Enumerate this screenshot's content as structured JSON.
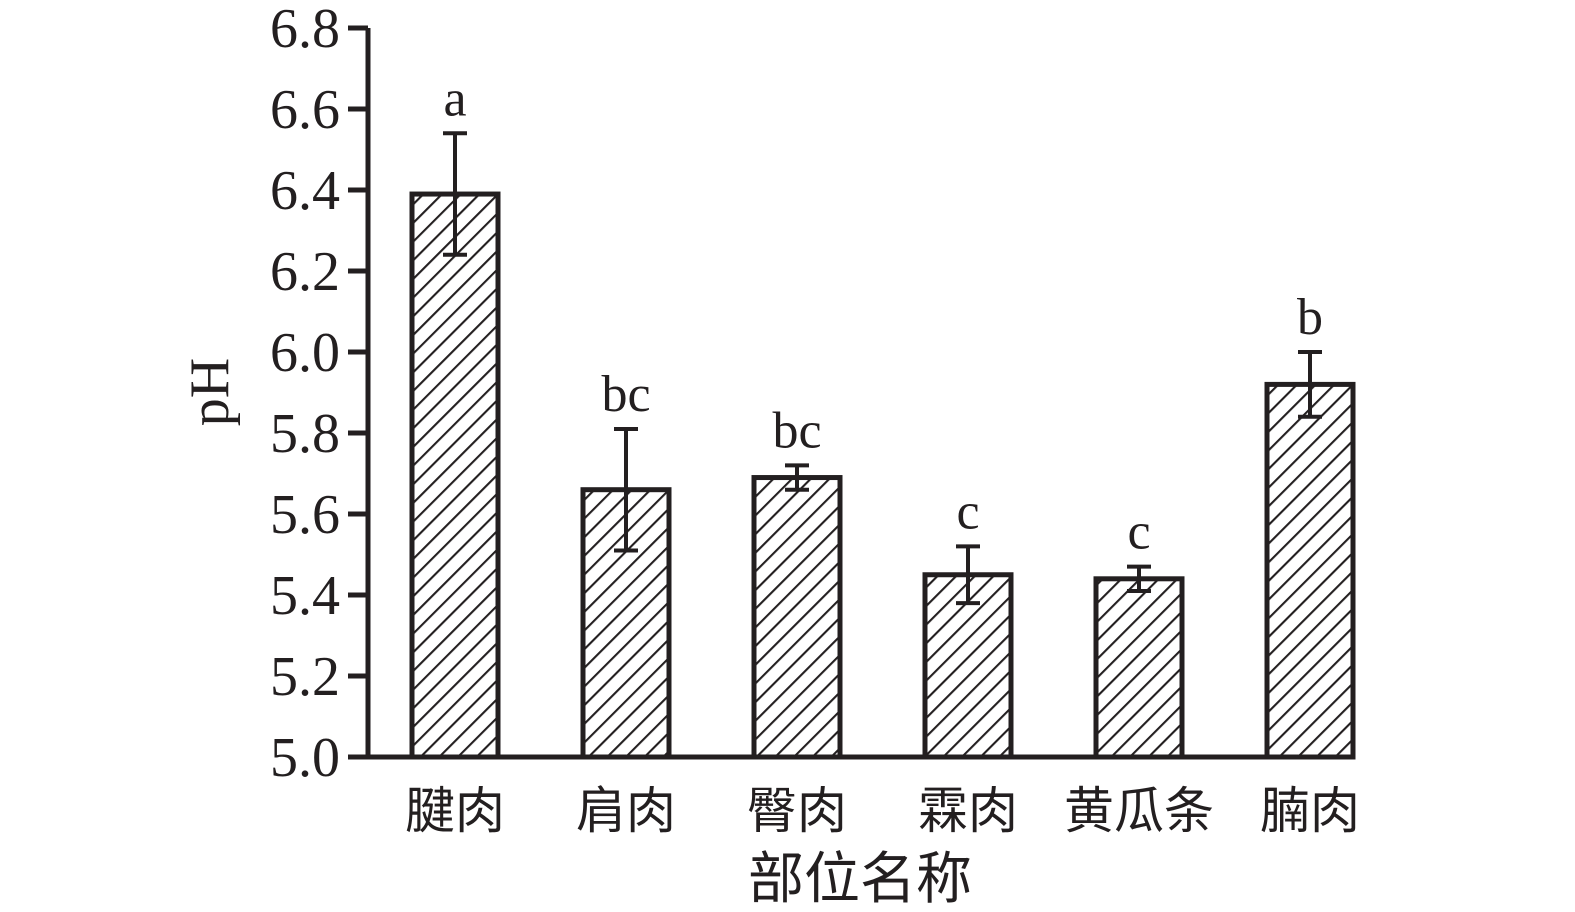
{
  "page": {
    "background": "#ffffff"
  },
  "chart_data": {
    "type": "bar",
    "title": "",
    "xlabel": "部位名称",
    "ylabel": "pH",
    "categories": [
      "腱肉",
      "肩肉",
      "臀肉",
      "霖肉",
      "黄瓜条",
      "腩肉"
    ],
    "values": [
      6.39,
      5.66,
      5.69,
      5.45,
      5.44,
      5.92
    ],
    "errors": [
      0.15,
      0.15,
      0.03,
      0.07,
      0.03,
      0.08
    ],
    "sig_letters": [
      "a",
      "bc",
      "bc",
      "c",
      "c",
      "b"
    ],
    "ylim": [
      5.0,
      6.8
    ],
    "ytick_step": 0.2,
    "ytick_labels": [
      "5.0",
      "5.2",
      "5.4",
      "5.6",
      "5.8",
      "6.0",
      "6.2",
      "6.4",
      "6.6",
      "6.8"
    ],
    "grid": false,
    "legend": null,
    "bar_style": {
      "fill": "diagonal-hatch",
      "hatch_direction": "/",
      "ink": "#231f20",
      "background": "#ffffff"
    }
  }
}
